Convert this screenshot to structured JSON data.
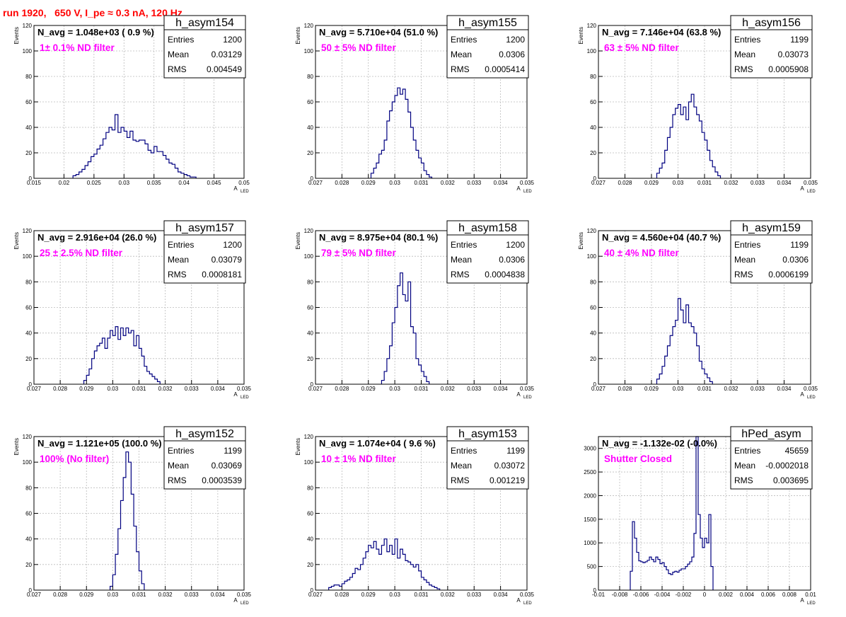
{
  "page_title": "run 1920,   650 V, I_pe ≈ 0.3 nA, 120 Hz",
  "colors": {
    "histogram": "#000080",
    "title": "#ff0000",
    "annotation": "#ff00ff",
    "grid": "#bbbbbb"
  },
  "chart_data": [
    {
      "type": "bar",
      "name": "h_asym154",
      "navg": "N_avg = 1.048e+03 ( 0.9 %)",
      "note": "1± 0.1% ND filter",
      "stats": [
        [
          "Entries",
          "1200"
        ],
        [
          "Mean",
          "0.03129"
        ],
        [
          "RMS",
          "0.004549"
        ]
      ],
      "xlabel": "A",
      "xlabel_sub": "LED",
      "ylabel": "Events",
      "xlim": [
        0.015,
        0.05
      ],
      "ylim": [
        0,
        120
      ],
      "xticks": [
        0.015,
        0.02,
        0.025,
        0.03,
        0.035,
        0.04,
        0.045,
        0.05
      ],
      "xtick_labels": [
        "0.015",
        "0.02",
        "0.025",
        "0.03",
        "0.035",
        "0.04",
        "0.045",
        "0.05"
      ],
      "yticks": [
        0,
        20,
        40,
        60,
        80,
        100,
        120
      ],
      "bins_x0": 0.0215,
      "bin_width": 0.0005,
      "values": [
        2,
        3,
        5,
        7,
        10,
        13,
        17,
        19,
        23,
        26,
        31,
        36,
        40,
        38,
        50,
        36,
        40,
        37,
        32,
        37,
        30,
        29,
        30,
        30,
        27,
        22,
        20,
        25,
        21,
        21,
        18,
        15,
        12,
        11,
        8,
        5,
        4,
        3,
        2,
        1,
        1
      ]
    },
    {
      "type": "bar",
      "name": "h_asym155",
      "navg": "N_avg = 5.710e+04 (51.0 %)",
      "note": "50 ± 5% ND filter",
      "stats": [
        [
          "Entries",
          "1200"
        ],
        [
          "Mean",
          "0.0306"
        ],
        [
          "RMS",
          "0.0005414"
        ]
      ],
      "xlabel": "A",
      "xlabel_sub": "LED",
      "ylabel": "Events",
      "xlim": [
        0.027,
        0.035
      ],
      "ylim": [
        0,
        120
      ],
      "xticks": [
        0.027,
        0.028,
        0.029,
        0.03,
        0.031,
        0.032,
        0.033,
        0.034,
        0.035
      ],
      "xtick_labels": [
        "0.027",
        "0.028",
        "0.029",
        "0.03",
        "0.031",
        "0.032",
        "0.033",
        "0.034",
        "0.035"
      ],
      "yticks": [
        0,
        20,
        40,
        60,
        80,
        100,
        120
      ],
      "bins_x0": 0.0291,
      "bin_width": 0.0001,
      "values": [
        4,
        8,
        12,
        19,
        22,
        30,
        45,
        53,
        60,
        65,
        71,
        66,
        70,
        62,
        52,
        40,
        30,
        22,
        16,
        12,
        6,
        3,
        1
      ]
    },
    {
      "type": "bar",
      "name": "h_asym156",
      "navg": "N_avg = 7.146e+04 (63.8 %)",
      "note": "63 ± 5% ND filter",
      "stats": [
        [
          "Entries",
          "1199"
        ],
        [
          "Mean",
          "0.03073"
        ],
        [
          "RMS",
          "0.0005908"
        ]
      ],
      "xlabel": "A",
      "xlabel_sub": "LED",
      "ylabel": "Events",
      "xlim": [
        0.027,
        0.035
      ],
      "ylim": [
        0,
        120
      ],
      "xticks": [
        0.027,
        0.028,
        0.029,
        0.03,
        0.031,
        0.032,
        0.033,
        0.034,
        0.035
      ],
      "xtick_labels": [
        "0.027",
        "0.028",
        "0.029",
        "0.03",
        "0.031",
        "0.032",
        "0.033",
        "0.034",
        "0.035"
      ],
      "yticks": [
        0,
        20,
        40,
        60,
        80,
        100,
        120
      ],
      "bins_x0": 0.0292,
      "bin_width": 0.0001,
      "values": [
        4,
        8,
        12,
        22,
        32,
        40,
        50,
        55,
        58,
        50,
        56,
        46,
        60,
        66,
        56,
        50,
        45,
        36,
        30,
        22,
        14,
        9,
        5,
        2
      ]
    },
    {
      "type": "bar",
      "name": "h_asym157",
      "navg": "N_avg = 2.916e+04 (26.0 %)",
      "note": "25 ± 2.5% ND filter",
      "stats": [
        [
          "Entries",
          "1200"
        ],
        [
          "Mean",
          "0.03079"
        ],
        [
          "RMS",
          "0.0008181"
        ]
      ],
      "xlabel": "A",
      "xlabel_sub": "LED",
      "ylabel": "Events",
      "xlim": [
        0.027,
        0.035
      ],
      "ylim": [
        0,
        120
      ],
      "xticks": [
        0.027,
        0.028,
        0.029,
        0.03,
        0.031,
        0.032,
        0.033,
        0.034,
        0.035
      ],
      "xtick_labels": [
        "0.027",
        "0.028",
        "0.029",
        "0.03",
        "0.031",
        "0.032",
        "0.033",
        "0.034",
        "0.035"
      ],
      "yticks": [
        0,
        20,
        40,
        60,
        80,
        100,
        120
      ],
      "bins_x0": 0.0289,
      "bin_width": 0.0001,
      "values": [
        3,
        7,
        12,
        20,
        26,
        30,
        32,
        36,
        28,
        36,
        42,
        38,
        45,
        35,
        44,
        38,
        44,
        40,
        42,
        30,
        38,
        28,
        22,
        14,
        10,
        8,
        6,
        4,
        2
      ]
    },
    {
      "type": "bar",
      "name": "h_asym158",
      "navg": "N_avg = 8.975e+04 (80.1 %)",
      "note": "79 ± 5% ND filter",
      "stats": [
        [
          "Entries",
          "1200"
        ],
        [
          "Mean",
          "0.0306"
        ],
        [
          "RMS",
          "0.0004838"
        ]
      ],
      "xlabel": "A",
      "xlabel_sub": "LED",
      "ylabel": "Events",
      "xlim": [
        0.027,
        0.035
      ],
      "ylim": [
        0,
        120
      ],
      "xticks": [
        0.027,
        0.028,
        0.029,
        0.03,
        0.031,
        0.032,
        0.033,
        0.034,
        0.035
      ],
      "xtick_labels": [
        "0.027",
        "0.028",
        "0.029",
        "0.03",
        "0.031",
        "0.032",
        "0.033",
        "0.034",
        "0.035"
      ],
      "yticks": [
        0,
        20,
        40,
        60,
        80,
        100,
        120
      ],
      "bins_x0": 0.0295,
      "bin_width": 0.0001,
      "values": [
        3,
        10,
        20,
        30,
        48,
        60,
        77,
        87,
        70,
        65,
        80,
        45,
        40,
        20,
        15,
        10,
        6,
        2
      ]
    },
    {
      "type": "bar",
      "name": "h_asym159",
      "navg": "N_avg = 4.560e+04 (40.7 %)",
      "note": "40 ± 4% ND filter",
      "stats": [
        [
          "Entries",
          "1199"
        ],
        [
          "Mean",
          "0.0306"
        ],
        [
          "RMS",
          "0.0006199"
        ]
      ],
      "xlabel": "A",
      "xlabel_sub": "LED",
      "ylabel": "Events",
      "xlim": [
        0.027,
        0.035
      ],
      "ylim": [
        0,
        120
      ],
      "xticks": [
        0.027,
        0.028,
        0.029,
        0.03,
        0.031,
        0.032,
        0.033,
        0.034,
        0.035
      ],
      "xtick_labels": [
        "0.027",
        "0.028",
        "0.029",
        "0.03",
        "0.031",
        "0.032",
        "0.033",
        "0.034",
        "0.035"
      ],
      "yticks": [
        0,
        20,
        40,
        60,
        80,
        100,
        120
      ],
      "bins_x0": 0.0292,
      "bin_width": 0.0001,
      "values": [
        4,
        8,
        14,
        22,
        30,
        38,
        45,
        50,
        67,
        58,
        48,
        62,
        48,
        45,
        40,
        30,
        18,
        12,
        8,
        5,
        2
      ]
    },
    {
      "type": "bar",
      "name": "h_asym152",
      "navg": "N_avg = 1.121e+05 (100.0 %)",
      "note": "100% (No filter)",
      "stats": [
        [
          "Entries",
          "1199"
        ],
        [
          "Mean",
          "0.03069"
        ],
        [
          "RMS",
          "0.0003539"
        ]
      ],
      "xlabel": "A",
      "xlabel_sub": "LED",
      "ylabel": "Events",
      "xlim": [
        0.027,
        0.035
      ],
      "ylim": [
        0,
        120
      ],
      "xticks": [
        0.027,
        0.028,
        0.029,
        0.03,
        0.031,
        0.032,
        0.033,
        0.034,
        0.035
      ],
      "xtick_labels": [
        "0.027",
        "0.028",
        "0.029",
        "0.03",
        "0.031",
        "0.032",
        "0.033",
        "0.034",
        "0.035"
      ],
      "yticks": [
        0,
        20,
        40,
        60,
        80,
        100,
        120
      ],
      "bins_x0": 0.0299,
      "bin_width": 0.0001,
      "values": [
        3,
        12,
        28,
        48,
        70,
        88,
        108,
        100,
        75,
        50,
        30,
        15,
        5
      ]
    },
    {
      "type": "bar",
      "name": "h_asym153",
      "navg": "N_avg = 1.074e+04 ( 9.6 %)",
      "note": "10 ± 1% ND filter",
      "stats": [
        [
          "Entries",
          "1199"
        ],
        [
          "Mean",
          "0.03072"
        ],
        [
          "RMS",
          "0.001219"
        ]
      ],
      "xlabel": "A",
      "xlabel_sub": "LED",
      "ylabel": "Events",
      "xlim": [
        0.027,
        0.035
      ],
      "ylim": [
        0,
        120
      ],
      "xticks": [
        0.027,
        0.028,
        0.029,
        0.03,
        0.031,
        0.032,
        0.033,
        0.034,
        0.035
      ],
      "xtick_labels": [
        "0.027",
        "0.028",
        "0.029",
        "0.03",
        "0.031",
        "0.032",
        "0.033",
        "0.034",
        "0.035"
      ],
      "yticks": [
        0,
        20,
        40,
        60,
        80,
        100,
        120
      ],
      "bins_x0": 0.0275,
      "bin_width": 0.0001,
      "values": [
        2,
        3,
        4,
        4,
        3,
        5,
        7,
        8,
        10,
        13,
        17,
        16,
        20,
        25,
        30,
        35,
        33,
        38,
        32,
        28,
        35,
        40,
        30,
        35,
        28,
        40,
        25,
        32,
        28,
        23,
        22,
        20,
        18,
        20,
        15,
        10,
        8,
        6,
        4,
        3,
        2,
        1
      ]
    },
    {
      "type": "bar",
      "name": "hPed_asym",
      "navg": "N_avg = -1.132e-02 (-0.0%)",
      "note": "Shutter Closed",
      "stats": [
        [
          "Entries",
          "45659"
        ],
        [
          "Mean",
          "-0.0002018"
        ],
        [
          "RMS",
          "0.003695"
        ]
      ],
      "xlabel": "A",
      "xlabel_sub": "LED",
      "ylabel": "",
      "xlim": [
        -0.01,
        0.01
      ],
      "ylim": [
        0,
        3250
      ],
      "xticks": [
        -0.01,
        -0.008,
        -0.006,
        -0.004,
        -0.002,
        0,
        0.002,
        0.004,
        0.006,
        0.008,
        0.01
      ],
      "xtick_labels": [
        "-0.01",
        "-0.008",
        "-0.006",
        "-0.004",
        "-0.002",
        "0",
        "0.002",
        "0.004",
        "0.006",
        "0.008",
        "0.01"
      ],
      "yticks": [
        0,
        500,
        1000,
        1500,
        2000,
        2500,
        3000
      ],
      "bins_x0": -0.007,
      "bin_width": 0.0002,
      "values": [
        400,
        1450,
        1100,
        800,
        620,
        600,
        580,
        600,
        630,
        700,
        650,
        600,
        700,
        650,
        560,
        580,
        500,
        430,
        350,
        330,
        380,
        400,
        380,
        420,
        450,
        450,
        500,
        550,
        600,
        700,
        1200,
        3250,
        1600,
        1100,
        900,
        1100,
        1000,
        1600,
        500
      ]
    }
  ]
}
